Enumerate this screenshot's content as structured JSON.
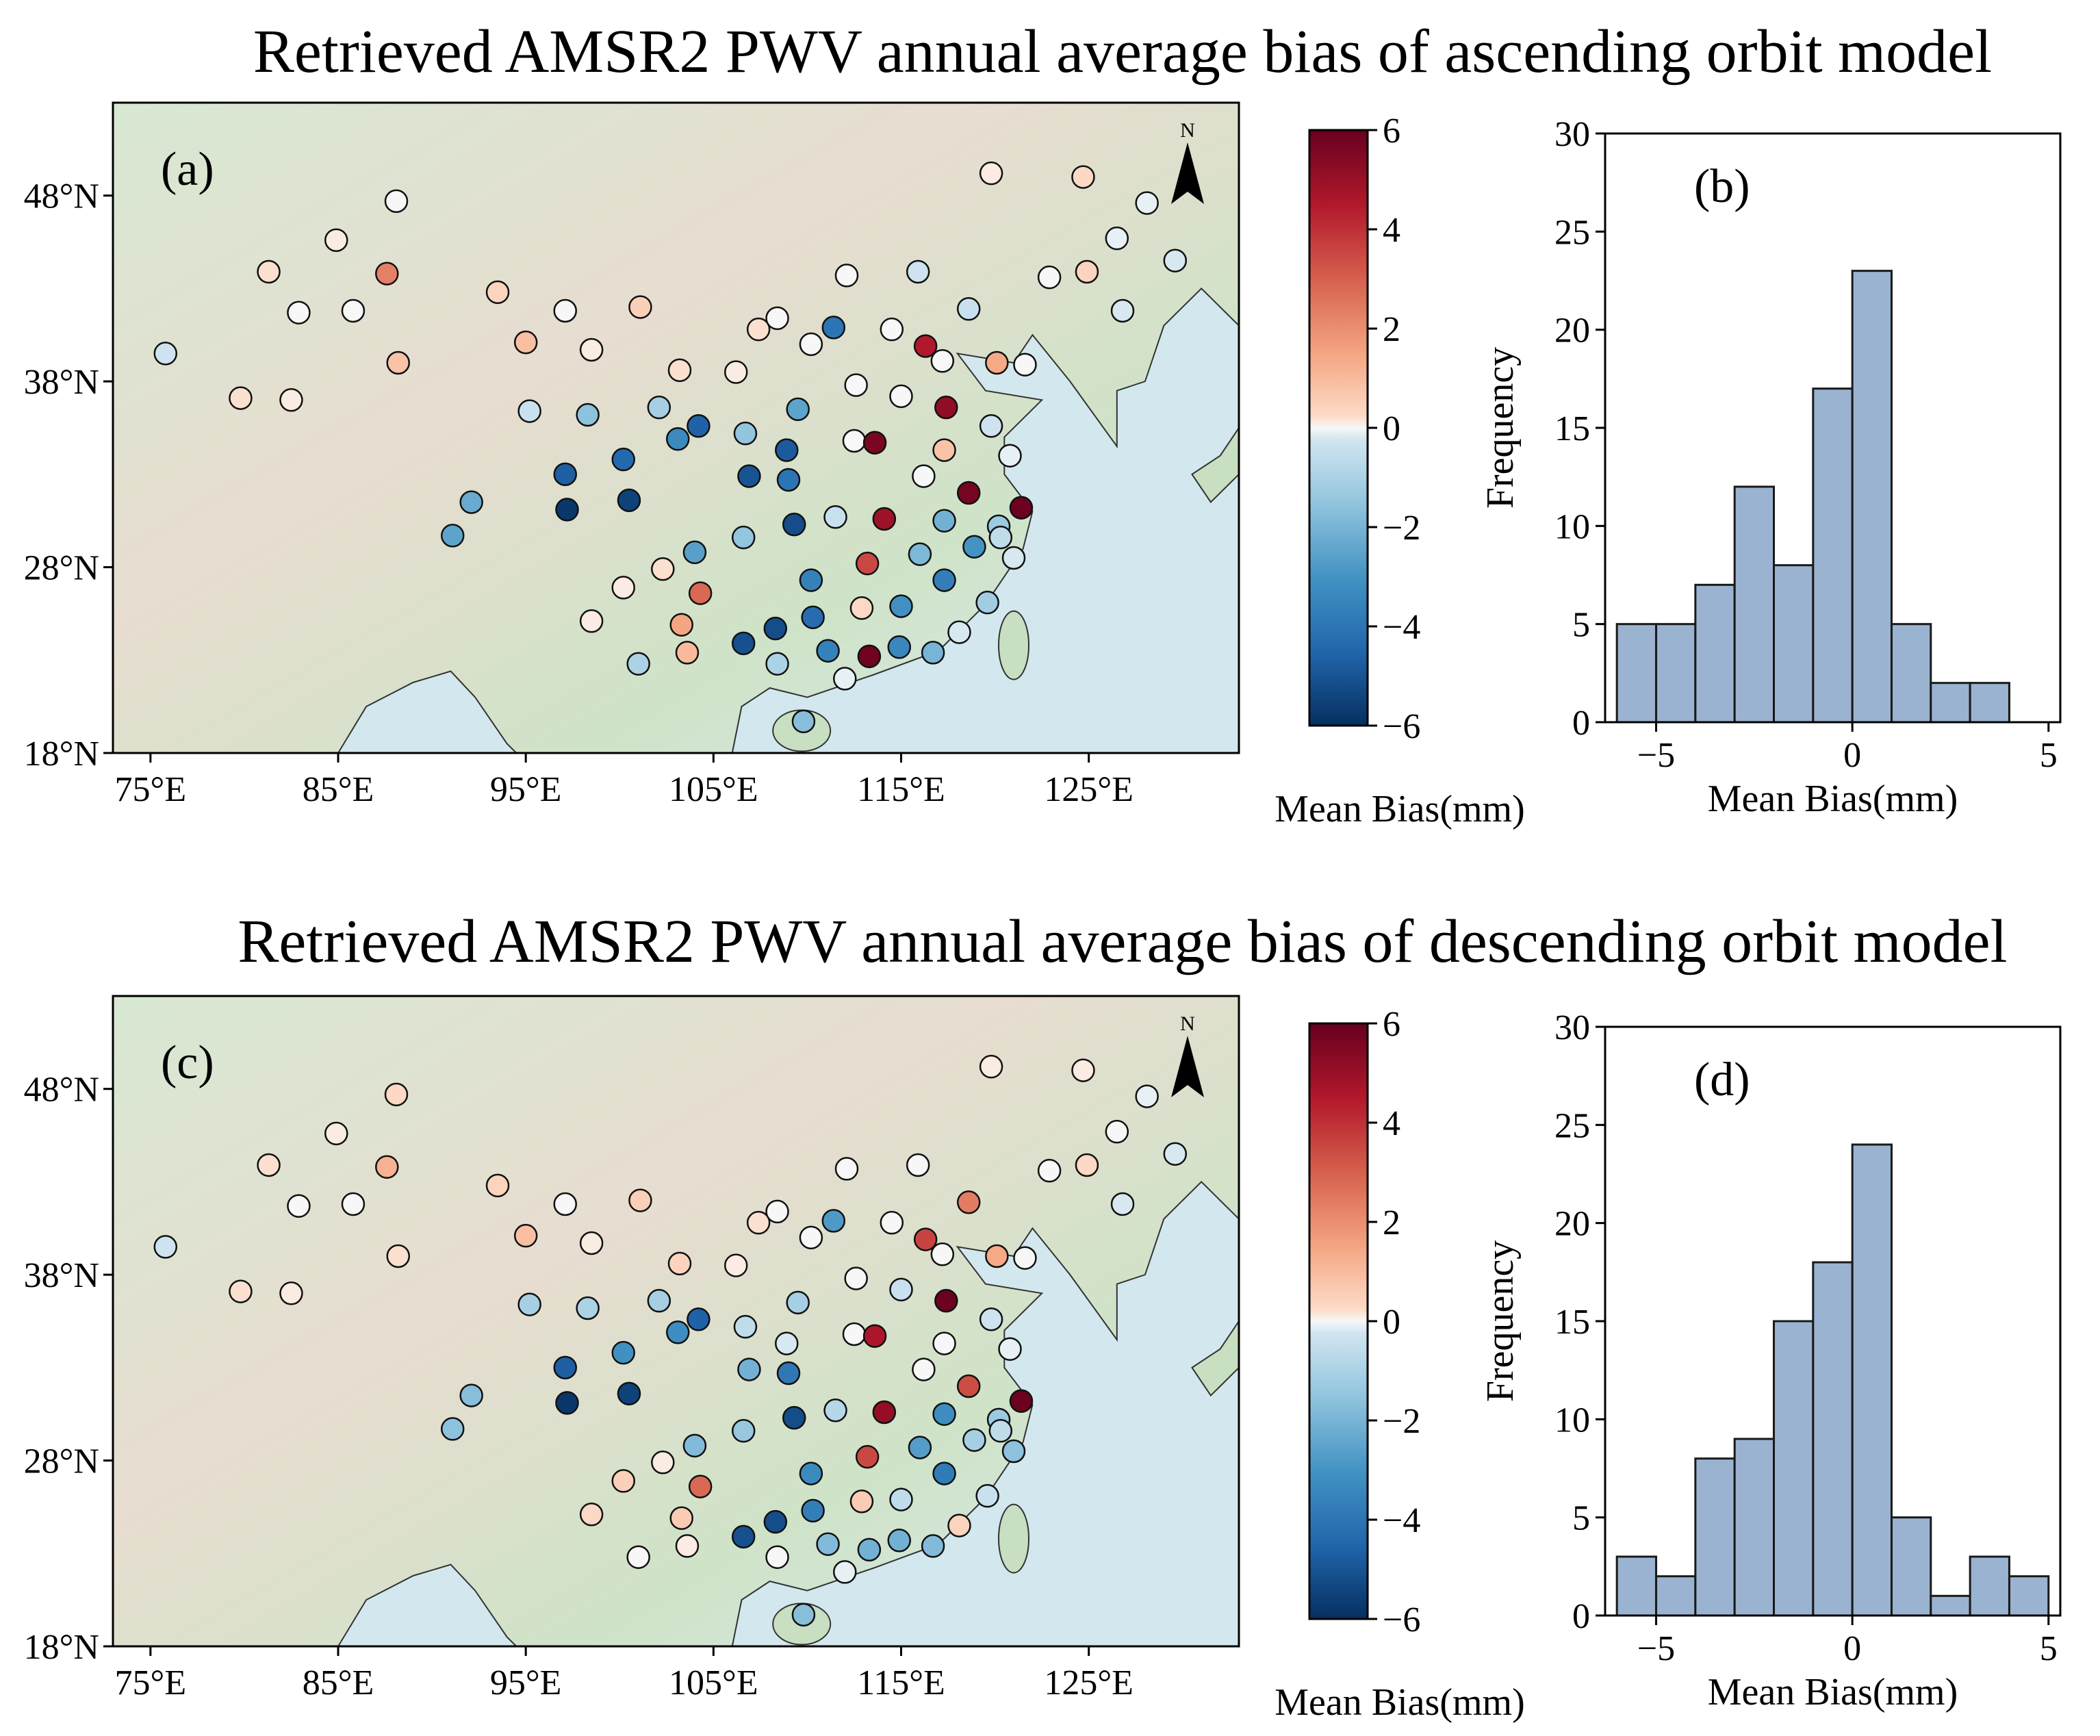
{
  "figure": {
    "title_top": "Retrieved AMSR2 PWV annual average bias of ascending orbit model",
    "title_bottom": "Retrieved AMSR2 PWV annual average bias of descending orbit model",
    "panel_labels": [
      "(a)",
      "(b)",
      "(c)",
      "(d)"
    ],
    "north_arrow_label": "N",
    "colorbar_label": "Mean Bias(mm)",
    "colorbar_ticks": [
      "6",
      "4",
      "2",
      "0",
      "−2",
      "−4",
      "−6"
    ],
    "hist_xlabel": "Mean Bias(mm)",
    "hist_ylabel": "Frequency",
    "map_lon_ticks": [
      "75°E",
      "85°E",
      "95°E",
      "105°E",
      "115°E",
      "125°E"
    ],
    "map_lat_ticks": [
      "48°N",
      "38°N",
      "28°N",
      "18°N"
    ],
    "hist_x_ticks": [
      "−5",
      "0",
      "5"
    ],
    "hist_y_ticks": [
      "30",
      "25",
      "20",
      "15",
      "10",
      "5",
      "0"
    ]
  },
  "colors": {
    "colormap": "RdBu_r",
    "land_green": "#d4e6cc",
    "land_tan": "#eaded2",
    "sea": "#d6eaf0",
    "bar_fill": "#9ab3d0"
  },
  "chart_data": [
    {
      "panel": "(a)",
      "type": "scatter",
      "description": "Station mean bias on map, colored by bias",
      "xlabel": "",
      "ylabel": "",
      "xlim": [
        73,
        133
      ],
      "ylim": [
        18,
        53
      ],
      "color_range": [
        -6,
        6
      ],
      "stations": [
        [
          75.8,
          39.5,
          -0.3
        ],
        [
          79.8,
          37.1,
          0.2
        ],
        [
          82.5,
          37.0,
          0.1
        ],
        [
          81.3,
          43.9,
          0.2
        ],
        [
          82.9,
          41.7,
          0.0
        ],
        [
          84.9,
          45.6,
          0.1
        ],
        [
          85.8,
          41.8,
          0.0
        ],
        [
          87.6,
          43.8,
          2.3
        ],
        [
          88.1,
          47.7,
          0.0
        ],
        [
          88.2,
          39.0,
          0.8
        ],
        [
          93.5,
          42.8,
          0.4
        ],
        [
          95.0,
          40.1,
          0.9
        ],
        [
          95.2,
          36.4,
          -0.4
        ],
        [
          97.1,
          41.8,
          0.0
        ],
        [
          98.5,
          39.7,
          0.1
        ],
        [
          101.1,
          42.0,
          0.5
        ],
        [
          102.1,
          36.6,
          -1.1
        ],
        [
          98.3,
          36.2,
          -1.6
        ],
        [
          103.2,
          38.6,
          0.2
        ],
        [
          106.2,
          38.5,
          0.1
        ],
        [
          107.4,
          40.8,
          0.2
        ],
        [
          108.4,
          41.4,
          0.0
        ],
        [
          110.2,
          40.0,
          0.0
        ],
        [
          111.4,
          40.9,
          -4.0
        ],
        [
          112.1,
          43.7,
          0.0
        ],
        [
          114.5,
          40.8,
          0.0
        ],
        [
          115.9,
          43.9,
          -0.3
        ],
        [
          116.3,
          39.9,
          4.5
        ],
        [
          117.2,
          39.1,
          0.0
        ],
        [
          118.6,
          41.9,
          -0.4
        ],
        [
          120.1,
          39.0,
          1.4
        ],
        [
          121.6,
          38.9,
          0.0
        ],
        [
          122.9,
          43.6,
          0.0
        ],
        [
          124.9,
          43.9,
          0.4
        ],
        [
          126.5,
          45.7,
          -0.1
        ],
        [
          128.1,
          47.6,
          -0.1
        ],
        [
          129.6,
          44.5,
          -0.2
        ],
        [
          126.8,
          41.8,
          -0.2
        ],
        [
          119.8,
          49.2,
          0.1
        ],
        [
          124.7,
          49.0,
          0.3
        ],
        [
          97.1,
          33.0,
          -4.7
        ],
        [
          97.2,
          31.1,
          -5.8
        ],
        [
          100.2,
          33.8,
          -4.4
        ],
        [
          100.5,
          31.6,
          -5.5
        ],
        [
          103.1,
          34.9,
          -3.3
        ],
        [
          104.2,
          35.6,
          -4.6
        ],
        [
          106.7,
          35.2,
          -1.5
        ],
        [
          108.9,
          34.3,
          -4.8
        ],
        [
          109.5,
          36.5,
          -2.5
        ],
        [
          106.9,
          32.9,
          -5.0
        ],
        [
          109.0,
          32.7,
          -4.0
        ],
        [
          112.5,
          34.8,
          0.0
        ],
        [
          113.6,
          34.7,
          5.6
        ],
        [
          115.0,
          37.2,
          0.0
        ],
        [
          112.6,
          37.8,
          0.0
        ],
        [
          117.3,
          34.3,
          0.8
        ],
        [
          117.4,
          36.6,
          5.2
        ],
        [
          119.8,
          35.6,
          -0.3
        ],
        [
          120.8,
          34.0,
          -0.1
        ],
        [
          116.2,
          32.9,
          0.0
        ],
        [
          118.6,
          32.0,
          5.7
        ],
        [
          121.4,
          31.2,
          5.9
        ],
        [
          120.2,
          30.2,
          -1.3
        ],
        [
          117.3,
          30.5,
          -2.1
        ],
        [
          114.1,
          30.6,
          4.9
        ],
        [
          111.5,
          30.7,
          -0.4
        ],
        [
          109.3,
          30.3,
          -5.2
        ],
        [
          106.6,
          29.6,
          -1.5
        ],
        [
          104.0,
          28.8,
          -2.6
        ],
        [
          100.2,
          26.9,
          0.1
        ],
        [
          102.3,
          27.9,
          0.2
        ],
        [
          104.3,
          26.6,
          2.8
        ],
        [
          98.5,
          25.1,
          0.1
        ],
        [
          103.3,
          24.9,
          1.5
        ],
        [
          103.6,
          23.4,
          1.0
        ],
        [
          101.0,
          22.8,
          -1.0
        ],
        [
          106.6,
          23.9,
          -5.1
        ],
        [
          108.3,
          24.7,
          -5.2
        ],
        [
          110.3,
          25.3,
          -4.3
        ],
        [
          108.4,
          22.8,
          -1.0
        ],
        [
          110.2,
          27.3,
          -3.6
        ],
        [
          113.2,
          28.2,
          3.5
        ],
        [
          112.9,
          25.8,
          0.3
        ],
        [
          115.0,
          25.9,
          -3.1
        ],
        [
          113.3,
          23.2,
          5.8
        ],
        [
          111.1,
          23.5,
          -3.6
        ],
        [
          114.9,
          23.7,
          -3.4
        ],
        [
          116.7,
          23.4,
          -2.0
        ],
        [
          118.1,
          24.5,
          -0.2
        ],
        [
          117.3,
          27.3,
          -3.7
        ],
        [
          116.0,
          28.7,
          -1.9
        ],
        [
          118.9,
          29.1,
          -3.0
        ],
        [
          119.6,
          26.1,
          -1.2
        ],
        [
          120.3,
          29.6,
          -0.6
        ],
        [
          121.0,
          28.5,
          -0.2
        ],
        [
          109.8,
          19.7,
          -1.7
        ],
        [
          112.0,
          22.0,
          -0.1
        ],
        [
          91.1,
          29.7,
          -2.5
        ],
        [
          92.1,
          31.5,
          -2.3
        ]
      ]
    },
    {
      "panel": "(b)",
      "type": "bar",
      "xlabel": "Mean Bias(mm)",
      "ylabel": "Frequency",
      "bin_edges": [
        -6,
        -5,
        -4,
        -3,
        -2,
        -1,
        0,
        1,
        2,
        3,
        4
      ],
      "values": [
        5,
        5,
        7,
        12,
        8,
        17,
        23,
        5,
        2,
        2
      ],
      "xlim": [
        -6.3,
        5.3
      ],
      "ylim": [
        0,
        30
      ]
    },
    {
      "panel": "(c)",
      "type": "scatter",
      "description": "Station mean bias on map, colored by bias",
      "xlabel": "",
      "ylabel": "",
      "xlim": [
        73,
        133
      ],
      "ylim": [
        18,
        53
      ],
      "color_range": [
        -6,
        6
      ],
      "stations": [
        [
          75.8,
          39.5,
          -0.3
        ],
        [
          79.8,
          37.1,
          0.2
        ],
        [
          82.5,
          37.0,
          0.1
        ],
        [
          81.3,
          43.9,
          0.2
        ],
        [
          82.9,
          41.7,
          0.0
        ],
        [
          84.9,
          45.6,
          0.1
        ],
        [
          85.8,
          41.8,
          0.0
        ],
        [
          87.6,
          43.8,
          1.2
        ],
        [
          88.1,
          47.7,
          0.3
        ],
        [
          88.2,
          39.0,
          0.2
        ],
        [
          93.5,
          42.8,
          0.4
        ],
        [
          95.0,
          40.1,
          0.9
        ],
        [
          95.2,
          36.4,
          -1.1
        ],
        [
          97.1,
          41.8,
          0.0
        ],
        [
          98.5,
          39.7,
          0.1
        ],
        [
          101.1,
          42.0,
          0.5
        ],
        [
          102.1,
          36.6,
          -1.1
        ],
        [
          98.3,
          36.2,
          -1.0
        ],
        [
          103.2,
          38.6,
          0.4
        ],
        [
          106.2,
          38.5,
          0.1
        ],
        [
          107.4,
          40.8,
          0.2
        ],
        [
          108.4,
          41.4,
          0.0
        ],
        [
          110.2,
          40.0,
          0.0
        ],
        [
          111.4,
          40.9,
          -2.8
        ],
        [
          112.1,
          43.7,
          0.0
        ],
        [
          114.5,
          40.8,
          0.0
        ],
        [
          115.9,
          43.9,
          0.0
        ],
        [
          116.3,
          39.9,
          3.6
        ],
        [
          117.2,
          39.1,
          0.0
        ],
        [
          118.6,
          41.9,
          2.4
        ],
        [
          120.1,
          39.0,
          1.4
        ],
        [
          121.6,
          38.9,
          0.0
        ],
        [
          122.9,
          43.6,
          0.0
        ],
        [
          124.9,
          43.9,
          0.3
        ],
        [
          126.5,
          45.7,
          0.0
        ],
        [
          128.1,
          47.6,
          -0.1
        ],
        [
          129.6,
          44.5,
          -0.2
        ],
        [
          126.8,
          41.8,
          -0.2
        ],
        [
          119.8,
          49.2,
          0.1
        ],
        [
          124.7,
          49.0,
          0.1
        ],
        [
          97.1,
          33.0,
          -4.7
        ],
        [
          97.2,
          31.1,
          -5.8
        ],
        [
          100.2,
          33.8,
          -3.1
        ],
        [
          100.5,
          31.6,
          -5.5
        ],
        [
          103.1,
          34.9,
          -3.2
        ],
        [
          104.2,
          35.6,
          -4.6
        ],
        [
          106.7,
          35.2,
          -0.6
        ],
        [
          108.9,
          34.3,
          -0.2
        ],
        [
          109.5,
          36.5,
          -1.1
        ],
        [
          106.9,
          32.9,
          -2.1
        ],
        [
          109.0,
          32.7,
          -3.9
        ],
        [
          112.5,
          34.8,
          0.0
        ],
        [
          113.6,
          34.7,
          4.6
        ],
        [
          115.0,
          37.2,
          -0.4
        ],
        [
          112.6,
          37.8,
          0.0
        ],
        [
          117.3,
          34.3,
          0.0
        ],
        [
          117.4,
          36.6,
          5.9
        ],
        [
          119.8,
          35.6,
          -0.3
        ],
        [
          120.8,
          34.0,
          -0.1
        ],
        [
          116.2,
          32.9,
          0.0
        ],
        [
          118.6,
          32.0,
          3.4
        ],
        [
          121.4,
          31.2,
          5.9
        ],
        [
          120.2,
          30.2,
          -1.3
        ],
        [
          117.3,
          30.5,
          -3.2
        ],
        [
          114.1,
          30.6,
          5.1
        ],
        [
          111.5,
          30.7,
          -0.8
        ],
        [
          109.3,
          30.3,
          -5.2
        ],
        [
          106.6,
          29.6,
          -1.4
        ],
        [
          104.0,
          28.8,
          -1.8
        ],
        [
          100.2,
          26.9,
          0.5
        ],
        [
          102.3,
          27.9,
          0.1
        ],
        [
          104.3,
          26.6,
          2.8
        ],
        [
          98.5,
          25.1,
          0.3
        ],
        [
          103.3,
          24.9,
          0.6
        ],
        [
          103.6,
          23.4,
          0.1
        ],
        [
          101.0,
          22.8,
          0.0
        ],
        [
          106.6,
          23.9,
          -5.1
        ],
        [
          108.3,
          24.7,
          -5.2
        ],
        [
          110.3,
          25.3,
          -3.7
        ],
        [
          108.4,
          22.8,
          0.0
        ],
        [
          110.2,
          27.3,
          -3.3
        ],
        [
          113.2,
          28.2,
          3.5
        ],
        [
          112.9,
          25.8,
          0.6
        ],
        [
          115.0,
          25.9,
          -0.6
        ],
        [
          113.3,
          23.2,
          -2.1
        ],
        [
          111.1,
          23.5,
          -1.8
        ],
        [
          114.9,
          23.7,
          -2.1
        ],
        [
          116.7,
          23.4,
          -1.8
        ],
        [
          118.1,
          24.5,
          0.4
        ],
        [
          117.3,
          27.3,
          -3.8
        ],
        [
          116.0,
          28.7,
          -2.7
        ],
        [
          118.9,
          29.1,
          -1.1
        ],
        [
          119.6,
          26.1,
          -0.4
        ],
        [
          120.3,
          29.6,
          -0.6
        ],
        [
          121.0,
          28.5,
          -1.6
        ],
        [
          109.8,
          19.7,
          -1.7
        ],
        [
          112.0,
          22.0,
          -0.1
        ],
        [
          91.1,
          29.7,
          -1.6
        ],
        [
          92.1,
          31.5,
          -1.7
        ]
      ]
    },
    {
      "panel": "(d)",
      "type": "bar",
      "xlabel": "Mean Bias(mm)",
      "ylabel": "Frequency",
      "bin_edges": [
        -6,
        -5,
        -4,
        -3,
        -2,
        -1,
        0,
        1,
        2,
        3,
        4,
        5
      ],
      "values": [
        3,
        2,
        8,
        9,
        15,
        18,
        24,
        5,
        1,
        3,
        2
      ],
      "xlim": [
        -6.3,
        5.3
      ],
      "ylim": [
        0,
        30
      ]
    }
  ]
}
